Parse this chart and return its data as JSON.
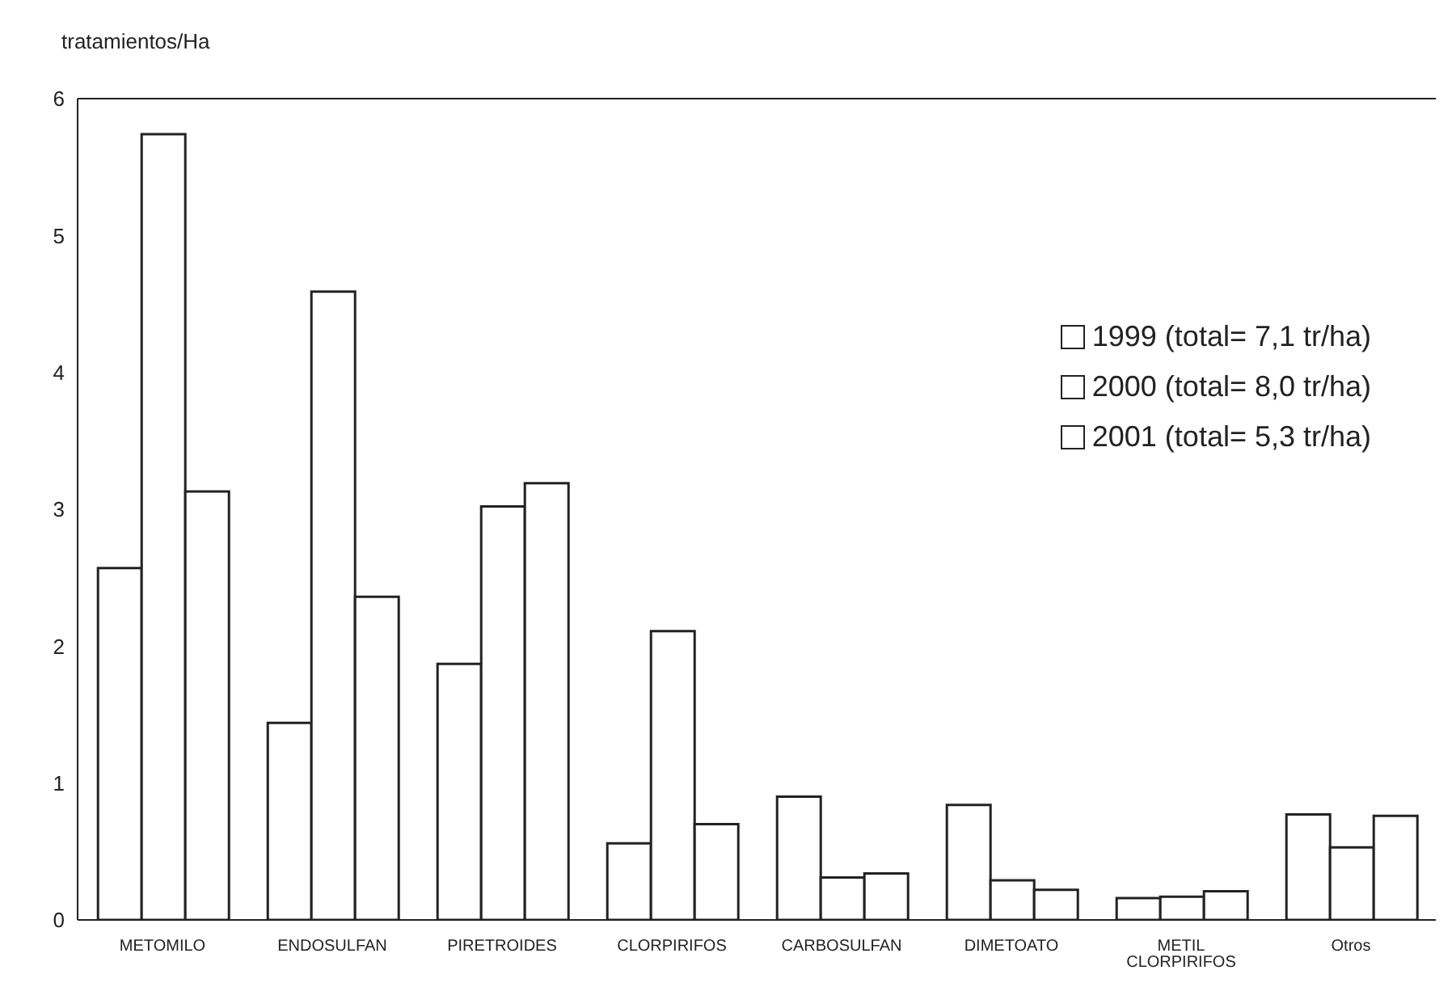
{
  "chart_data": {
    "type": "bar",
    "ylabel": "tratamientos/Ha",
    "categories": [
      "METOMILO",
      "ENDOSULFAN",
      "PIRETROIDES",
      "CLORPIRIFOS",
      "CARBOSULFAN",
      "DIMETOATO",
      "METIL CLORPIRIFOS",
      "Otros"
    ],
    "series": [
      {
        "name": "1999 (total= 7,1 tr/ha)",
        "color": "#ffffff",
        "values": [
          2.57,
          1.44,
          1.87,
          0.56,
          0.9,
          0.84,
          0.16,
          0.77
        ]
      },
      {
        "name": "2000 (total= 8,0 tr/ha)",
        "color": "#ffffff",
        "values": [
          5.74,
          4.59,
          3.02,
          2.11,
          0.31,
          0.29,
          0.17,
          0.53
        ]
      },
      {
        "name": "2001 (total= 5,3 tr/ha)",
        "color": "#ffffff",
        "values": [
          3.13,
          2.36,
          3.19,
          0.7,
          0.34,
          0.22,
          0.21,
          0.76
        ]
      }
    ],
    "ylim": [
      0,
      6
    ],
    "yticks": [
      0,
      1,
      2,
      3,
      4,
      5,
      6
    ],
    "legend": "right"
  }
}
